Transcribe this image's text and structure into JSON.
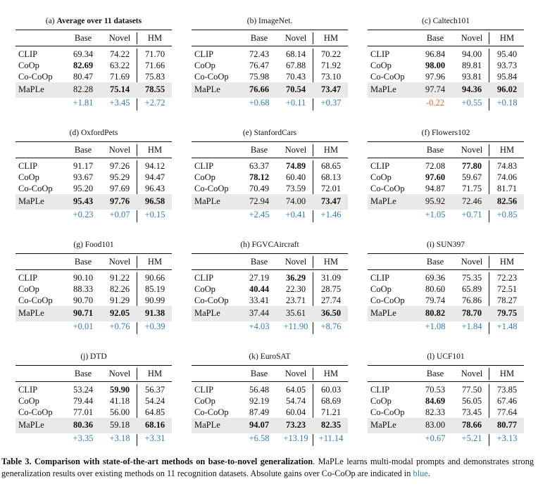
{
  "headers": {
    "method": "",
    "base": "Base",
    "novel": "Novel",
    "hm": "HM"
  },
  "datasets": [
    {
      "label": "(a)",
      "name": "Average over 11 datasets",
      "name_bold": true,
      "rows": [
        {
          "method": "CLIP",
          "base": "69.34",
          "novel": "74.22",
          "hm": "71.70"
        },
        {
          "method": "CoOp",
          "base": "82.69",
          "novel": "63.22",
          "hm": "71.66",
          "bold": [
            "base"
          ]
        },
        {
          "method": "Co-CoOp",
          "base": "80.47",
          "novel": "71.69",
          "hm": "75.83"
        }
      ],
      "maple": {
        "method": "MaPLe",
        "base": "82.28",
        "novel": "75.14",
        "hm": "78.55",
        "bold": [
          "novel",
          "hm"
        ]
      },
      "gain": {
        "base": "+1.81",
        "novel": "+3.45",
        "hm": "+2.72"
      }
    },
    {
      "label": "(b)",
      "name": "ImageNet.",
      "rows": [
        {
          "method": "CLIP",
          "base": "72.43",
          "novel": "68.14",
          "hm": "70.22"
        },
        {
          "method": "CoOp",
          "base": "76.47",
          "novel": "67.88",
          "hm": "71.92"
        },
        {
          "method": "Co-CoOp",
          "base": "75.98",
          "novel": "70.43",
          "hm": "73.10"
        }
      ],
      "maple": {
        "method": "MaPLe",
        "base": "76.66",
        "novel": "70.54",
        "hm": "73.47",
        "bold": [
          "base",
          "novel",
          "hm"
        ]
      },
      "gain": {
        "base": "+0.68",
        "novel": "+0.11",
        "hm": "+0.37"
      }
    },
    {
      "label": "(c)",
      "name": "Caltech101",
      "rows": [
        {
          "method": "CLIP",
          "base": "96.84",
          "novel": "94.00",
          "hm": "95.40"
        },
        {
          "method": "CoOp",
          "base": "98.00",
          "novel": "89.81",
          "hm": "93.73",
          "bold": [
            "base"
          ]
        },
        {
          "method": "Co-CoOp",
          "base": "97.96",
          "novel": "93.81",
          "hm": "95.84"
        }
      ],
      "maple": {
        "method": "MaPLe",
        "base": "97.74",
        "novel": "94.36",
        "hm": "96.02",
        "bold": [
          "novel",
          "hm"
        ]
      },
      "gain": {
        "base": "-0.22",
        "novel": "+0.55",
        "hm": "+0.18"
      }
    },
    {
      "label": "(d)",
      "name": "OxfordPets",
      "rows": [
        {
          "method": "CLIP",
          "base": "91.17",
          "novel": "97.26",
          "hm": "94.12"
        },
        {
          "method": "CoOp",
          "base": "93.67",
          "novel": "95.29",
          "hm": "94.47"
        },
        {
          "method": "Co-CoOp",
          "base": "95.20",
          "novel": "97.69",
          "hm": "96.43"
        }
      ],
      "maple": {
        "method": "MaPLe",
        "base": "95.43",
        "novel": "97.76",
        "hm": "96.58",
        "bold": [
          "base",
          "novel",
          "hm"
        ]
      },
      "gain": {
        "base": "+0.23",
        "novel": "+0.07",
        "hm": "+0.15"
      }
    },
    {
      "label": "(e)",
      "name": "StanfordCars",
      "rows": [
        {
          "method": "CLIP",
          "base": "63.37",
          "novel": "74.89",
          "hm": "68.65",
          "bold": [
            "novel"
          ]
        },
        {
          "method": "CoOp",
          "base": "78.12",
          "novel": "60.40",
          "hm": "68.13",
          "bold": [
            "base"
          ]
        },
        {
          "method": "Co-CoOp",
          "base": "70.49",
          "novel": "73.59",
          "hm": "72.01"
        }
      ],
      "maple": {
        "method": "MaPLe",
        "base": "72.94",
        "novel": "74.00",
        "hm": "73.47",
        "bold": [
          "hm"
        ]
      },
      "gain": {
        "base": "+2.45",
        "novel": "+0.41",
        "hm": "+1.46"
      }
    },
    {
      "label": "(f)",
      "name": "Flowers102",
      "rows": [
        {
          "method": "CLIP",
          "base": "72.08",
          "novel": "77.80",
          "hm": "74.83",
          "bold": [
            "novel"
          ]
        },
        {
          "method": "CoOp",
          "base": "97.60",
          "novel": "59.67",
          "hm": "74.06",
          "bold": [
            "base"
          ]
        },
        {
          "method": "Co-CoOp",
          "base": "94.87",
          "novel": "71.75",
          "hm": "81.71"
        }
      ],
      "maple": {
        "method": "MaPLe",
        "base": "95.92",
        "novel": "72.46",
        "hm": "82.56",
        "bold": [
          "hm"
        ]
      },
      "gain": {
        "base": "+1.05",
        "novel": "+0.71",
        "hm": "+0.85"
      }
    },
    {
      "label": "(g)",
      "name": "Food101",
      "rows": [
        {
          "method": "CLIP",
          "base": "90.10",
          "novel": "91.22",
          "hm": "90.66"
        },
        {
          "method": "CoOp",
          "base": "88.33",
          "novel": "82.26",
          "hm": "85.19"
        },
        {
          "method": "Co-CoOp",
          "base": "90.70",
          "novel": "91.29",
          "hm": "90.99"
        }
      ],
      "maple": {
        "method": "MaPLe",
        "base": "90.71",
        "novel": "92.05",
        "hm": "91.38",
        "bold": [
          "base",
          "novel",
          "hm"
        ]
      },
      "gain": {
        "base": "+0.01",
        "novel": "+0.76",
        "hm": "+0.39"
      }
    },
    {
      "label": "(h)",
      "name": "FGVCAircraft",
      "rows": [
        {
          "method": "CLIP",
          "base": "27.19",
          "novel": "36.29",
          "hm": "31.09",
          "bold": [
            "novel"
          ]
        },
        {
          "method": "CoOp",
          "base": "40.44",
          "novel": "22.30",
          "hm": "28.75",
          "bold": [
            "base"
          ]
        },
        {
          "method": "Co-CoOp",
          "base": "33.41",
          "novel": "23.71",
          "hm": "27.74"
        }
      ],
      "maple": {
        "method": "MaPLe",
        "base": "37.44",
        "novel": "35.61",
        "hm": "36.50",
        "bold": [
          "hm"
        ]
      },
      "gain": {
        "base": "+4.03",
        "novel": "+11.90",
        "hm": "+8.76"
      }
    },
    {
      "label": "(i)",
      "name": "SUN397",
      "rows": [
        {
          "method": "CLIP",
          "base": "69.36",
          "novel": "75.35",
          "hm": "72.23"
        },
        {
          "method": "CoOp",
          "base": "80.60",
          "novel": "65.89",
          "hm": "72.51"
        },
        {
          "method": "Co-CoOp",
          "base": "79.74",
          "novel": "76.86",
          "hm": "78.27"
        }
      ],
      "maple": {
        "method": "MaPLe",
        "base": "80.82",
        "novel": "78.70",
        "hm": "79.75",
        "bold": [
          "base",
          "novel",
          "hm"
        ]
      },
      "gain": {
        "base": "+1.08",
        "novel": "+1.84",
        "hm": "+1.48"
      }
    },
    {
      "label": "(j)",
      "name": "DTD",
      "rows": [
        {
          "method": "CLIP",
          "base": "53.24",
          "novel": "59.90",
          "hm": "56.37",
          "bold": [
            "novel"
          ]
        },
        {
          "method": "CoOp",
          "base": "79.44",
          "novel": "41.18",
          "hm": "54.24"
        },
        {
          "method": "Co-CoOp",
          "base": "77.01",
          "novel": "56.00",
          "hm": "64.85"
        }
      ],
      "maple": {
        "method": "MaPLe",
        "base": "80.36",
        "novel": "59.18",
        "hm": "68.16",
        "bold": [
          "base",
          "hm"
        ]
      },
      "gain": {
        "base": "+3.35",
        "novel": "+3.18",
        "hm": "+3.31"
      }
    },
    {
      "label": "(k)",
      "name": "EuroSAT",
      "rows": [
        {
          "method": "CLIP",
          "base": "56.48",
          "novel": "64.05",
          "hm": "60.03"
        },
        {
          "method": "CoOp",
          "base": "92.19",
          "novel": "54.74",
          "hm": "68.69"
        },
        {
          "method": "Co-CoOp",
          "base": "87.49",
          "novel": "60.04",
          "hm": "71.21"
        }
      ],
      "maple": {
        "method": "MaPLe",
        "base": "94.07",
        "novel": "73.23",
        "hm": "82.35",
        "bold": [
          "base",
          "novel",
          "hm"
        ]
      },
      "gain": {
        "base": "+6.58",
        "novel": "+13.19",
        "hm": "+11.14"
      }
    },
    {
      "label": "(l)",
      "name": "UCF101",
      "rows": [
        {
          "method": "CLIP",
          "base": "70.53",
          "novel": "77.50",
          "hm": "73.85"
        },
        {
          "method": "CoOp",
          "base": "84.69",
          "novel": "56.05",
          "hm": "67.46",
          "bold": [
            "base"
          ]
        },
        {
          "method": "Co-CoOp",
          "base": "82.33",
          "novel": "73.45",
          "hm": "77.64"
        }
      ],
      "maple": {
        "method": "MaPLe",
        "base": "83.00",
        "novel": "78.66",
        "hm": "80.77",
        "bold": [
          "novel",
          "hm"
        ]
      },
      "gain": {
        "base": "+0.67",
        "novel": "+5.21",
        "hm": "+3.13"
      }
    }
  ],
  "caption": {
    "label": "Table 3.",
    "bold_text": "Comparison with state-of-the-art methods on base-to-novel generalization",
    "text": ". MaPLe learns multi-modal prompts and demonstrates strong generalization results over existing methods on 11 recognition datasets. Absolute gains over Co-CoOp are indicated in ",
    "blue_word": "blue",
    "end": "."
  },
  "colors": {
    "gain_positive": "#2b7bbf",
    "gain_negative": "#e06b2a",
    "highlight_row": "#e9e9e9",
    "rule": "#111111"
  }
}
